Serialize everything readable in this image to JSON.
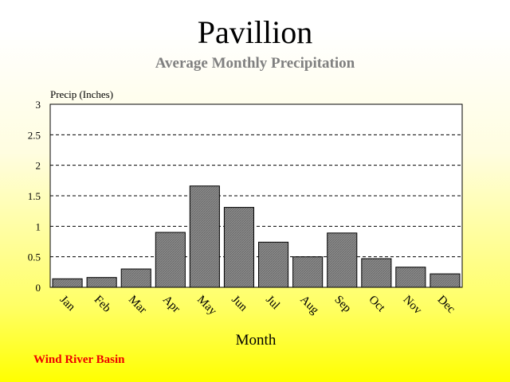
{
  "header": {
    "title": "Pavillion",
    "subtitle": "Average Monthly Precipitation"
  },
  "footer": {
    "basin": "Wind River Basin"
  },
  "colors": {
    "bar_fill": "#8c8c8c",
    "plot_bg": "#ffffff",
    "grid": "#000000",
    "footer_text": "#ee0000",
    "subtitle_text": "#808080"
  },
  "chart_data": {
    "type": "bar",
    "title": "Pavillion",
    "subtitle": "Average Monthly Precipitation",
    "xlabel": "Month",
    "ylabel": "Precip (Inches)",
    "categories": [
      "Jan",
      "Feb",
      "Mar",
      "Apr",
      "May",
      "Jun",
      "Jul",
      "Aug",
      "Sep",
      "Oct",
      "Nov",
      "Dec"
    ],
    "values": [
      0.14,
      0.16,
      0.3,
      0.9,
      1.66,
      1.31,
      0.74,
      0.5,
      0.89,
      0.47,
      0.33,
      0.22
    ],
    "ylim": [
      0,
      3
    ],
    "yticks": [
      "0",
      "0.5",
      "1",
      "1.5",
      "2",
      "2.5",
      "3"
    ],
    "grid": true,
    "grid_style": "dashed",
    "legend": "none"
  }
}
